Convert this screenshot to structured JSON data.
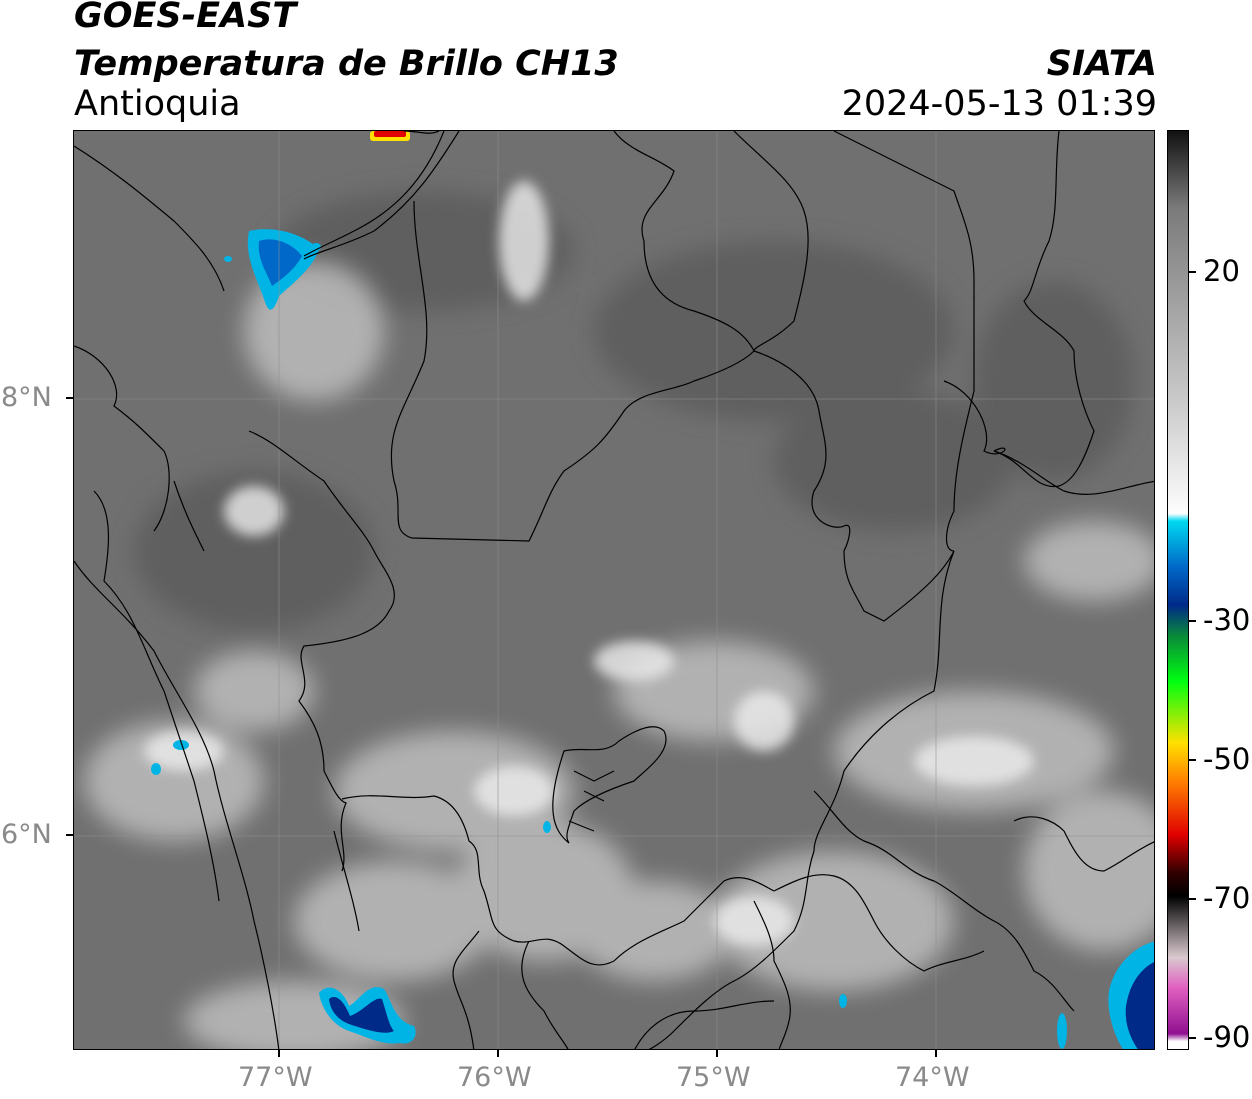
{
  "header": {
    "satellite": "GOES-EAST",
    "product": "Temperatura de Brillo CH13",
    "region": "Antioquia",
    "organization": "SIATA",
    "datetime": "2024-05-13 01:39"
  },
  "axes": {
    "latitude_labels": [
      "8°N",
      "6°N"
    ],
    "longitude_labels": [
      "77°W",
      "76°W",
      "75°W",
      "74°W"
    ]
  },
  "colorbar": {
    "tick_labels": [
      "20",
      "-30",
      "-50",
      "-70",
      "-90"
    ],
    "stops": [
      {
        "value": 30,
        "color": "#111111"
      },
      {
        "value": 20,
        "color": "#7a7a7a"
      },
      {
        "value": -5,
        "color": "#c9c9c9"
      },
      {
        "value": -20,
        "color": "#fdfdfd"
      },
      {
        "value": -21,
        "color": "#00d8f0"
      },
      {
        "value": -27,
        "color": "#0068c8"
      },
      {
        "value": -32,
        "color": "#002a88"
      },
      {
        "value": -36,
        "color": "#0a8a3a"
      },
      {
        "value": -42,
        "color": "#00ff10"
      },
      {
        "value": -50,
        "color": "#ffe000"
      },
      {
        "value": -55,
        "color": "#ff8000"
      },
      {
        "value": -62,
        "color": "#e00000"
      },
      {
        "value": -67,
        "color": "#300000"
      },
      {
        "value": -70,
        "color": "#000000"
      },
      {
        "value": -78,
        "color": "#d9c9cf"
      },
      {
        "value": -82,
        "color": "#e060c0"
      },
      {
        "value": -88,
        "color": "#901090"
      },
      {
        "value": -89,
        "color": "#ffffff"
      }
    ]
  },
  "colors": {
    "cold_cloud": "#00b4e6",
    "deep_convection": "#002a88",
    "hot_spot": "#e00000"
  }
}
